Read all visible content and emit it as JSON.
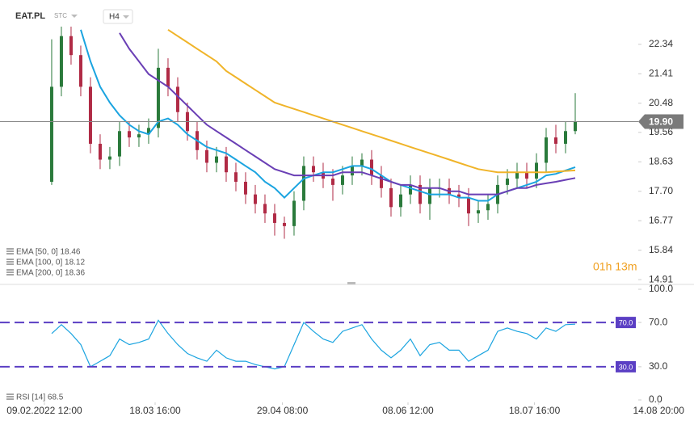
{
  "chart_data": [
    {
      "type": "candlestick",
      "symbol": "EAT.PL",
      "market": "STC",
      "interval": "H4",
      "up_color": "#2a7a3b",
      "down_color": "#b02a45",
      "open": [
        18.0,
        21.0,
        22.6,
        22.0,
        21.0,
        19.2,
        18.7,
        18.8,
        19.6,
        19.4,
        19.5,
        19.7,
        21.6,
        21.0,
        20.2,
        19.6,
        19.0,
        18.6,
        18.8,
        18.3,
        18.0,
        17.6,
        17.3,
        17.0,
        16.7,
        16.6,
        17.4,
        18.5,
        18.3,
        18.1,
        17.9,
        18.2,
        18.5,
        18.7,
        18.2,
        17.8,
        17.2,
        17.6,
        17.9,
        17.3,
        17.8,
        17.8,
        17.6,
        17.5,
        17.0,
        17.1,
        17.3,
        17.9,
        18.1,
        18.3,
        18.1,
        18.6,
        19.4,
        19.2,
        19.6
      ],
      "high": [
        22.5,
        22.9,
        22.9,
        22.3,
        21.3,
        19.5,
        19.1,
        19.9,
        19.9,
        19.8,
        20.0,
        22.2,
        21.9,
        21.3,
        20.5,
        19.9,
        19.3,
        19.1,
        19.1,
        18.6,
        18.3,
        17.9,
        17.6,
        17.3,
        16.9,
        17.7,
        18.8,
        18.8,
        18.6,
        18.4,
        18.5,
        18.8,
        18.9,
        19.0,
        18.5,
        18.1,
        17.9,
        18.2,
        18.2,
        18.1,
        18.1,
        18.1,
        17.9,
        17.8,
        17.4,
        17.6,
        18.2,
        18.4,
        18.6,
        18.6,
        18.9,
        19.7,
        19.8,
        19.9,
        20.8
      ],
      "low": [
        17.9,
        20.7,
        21.7,
        20.7,
        18.9,
        18.4,
        18.4,
        18.5,
        19.1,
        19.1,
        19.2,
        19.4,
        20.7,
        19.9,
        19.3,
        18.7,
        18.3,
        18.3,
        18.0,
        17.7,
        17.3,
        17.0,
        16.7,
        16.3,
        16.2,
        16.3,
        17.1,
        18.0,
        17.8,
        17.4,
        17.6,
        17.9,
        18.2,
        17.9,
        17.5,
        16.9,
        16.9,
        17.3,
        17.0,
        16.8,
        17.5,
        17.3,
        17.2,
        16.6,
        16.7,
        16.8,
        17.0,
        17.6,
        17.8,
        17.8,
        17.8,
        18.3,
        18.9,
        18.9,
        19.5
      ],
      "close": [
        21.0,
        22.6,
        22.0,
        21.0,
        19.2,
        18.7,
        18.8,
        19.6,
        19.4,
        19.5,
        19.7,
        21.6,
        21.0,
        20.2,
        19.6,
        19.0,
        18.6,
        18.8,
        18.3,
        18.0,
        17.6,
        17.3,
        17.0,
        16.7,
        16.6,
        17.4,
        18.5,
        18.3,
        18.1,
        17.9,
        18.2,
        18.5,
        18.7,
        18.2,
        17.8,
        17.2,
        17.6,
        17.9,
        17.3,
        17.8,
        17.8,
        17.6,
        17.5,
        17.0,
        17.1,
        17.3,
        17.9,
        18.1,
        18.3,
        18.1,
        18.6,
        19.4,
        19.2,
        19.6,
        19.9
      ],
      "series": [
        {
          "name": "EMA [50, 0] 18.46",
          "color": "#1ba4e0",
          "values": [
            null,
            null,
            null,
            22.8,
            21.8,
            21.0,
            20.5,
            20.1,
            19.8,
            19.6,
            19.5,
            19.9,
            20.0,
            19.8,
            19.5,
            19.3,
            19.1,
            19.0,
            18.9,
            18.7,
            18.5,
            18.3,
            18.0,
            17.8,
            17.5,
            17.8,
            18.1,
            18.2,
            18.3,
            18.3,
            18.4,
            18.5,
            18.5,
            18.4,
            18.2,
            18.0,
            17.9,
            17.8,
            17.7,
            17.6,
            17.6,
            17.6,
            17.5,
            17.5,
            17.4,
            17.4,
            17.6,
            17.7,
            17.8,
            17.9,
            18.0,
            18.2,
            18.25,
            18.36,
            18.46
          ]
        },
        {
          "name": "EMA [100, 0] 18.12",
          "color": "#6a3fb5",
          "values": [
            null,
            null,
            null,
            null,
            null,
            null,
            null,
            22.7,
            22.2,
            21.8,
            21.4,
            21.2,
            21.0,
            20.7,
            20.4,
            20.1,
            19.8,
            19.6,
            19.4,
            19.2,
            19.0,
            18.8,
            18.6,
            18.4,
            18.3,
            18.2,
            18.2,
            18.2,
            18.2,
            18.2,
            18.3,
            18.3,
            18.3,
            18.2,
            18.1,
            18.0,
            17.9,
            17.9,
            17.8,
            17.8,
            17.8,
            17.7,
            17.7,
            17.6,
            17.6,
            17.6,
            17.6,
            17.7,
            17.8,
            17.8,
            17.9,
            17.95,
            18.0,
            18.06,
            18.12
          ]
        },
        {
          "name": "EMA [200, 0] 18.36",
          "color": "#f0b429",
          "values": [
            null,
            null,
            null,
            null,
            null,
            null,
            null,
            null,
            null,
            null,
            null,
            null,
            22.8,
            22.6,
            22.4,
            22.2,
            22.0,
            21.8,
            21.5,
            21.3,
            21.1,
            20.9,
            20.7,
            20.5,
            20.4,
            20.3,
            20.2,
            20.1,
            20.0,
            19.9,
            19.8,
            19.7,
            19.6,
            19.5,
            19.4,
            19.3,
            19.2,
            19.1,
            19.0,
            18.9,
            18.8,
            18.7,
            18.6,
            18.5,
            18.4,
            18.35,
            18.3,
            18.3,
            18.3,
            18.3,
            18.3,
            18.3,
            18.32,
            18.34,
            18.36
          ]
        }
      ],
      "last_price": {
        "value": 19.9,
        "label": "19.90"
      },
      "countdown": "01h 13m",
      "xlim": [
        -5.33,
        60.5
      ],
      "xticks": [
        {
          "value": -0.75,
          "label": "09.02.2022 12:00"
        },
        {
          "value": 10.67,
          "label": "18.03 16:00"
        },
        {
          "value": 23.8,
          "label": "29.04 08:00"
        },
        {
          "value": 36.75,
          "label": "08.06 12:00"
        },
        {
          "value": 49.8,
          "label": "18.07 16:00"
        },
        {
          "value": 62.6,
          "label": "14.08 20:00"
        }
      ],
      "ylim": [
        14.81,
        23.74
      ],
      "yticks": [
        22.34,
        21.41,
        20.48,
        19.56,
        18.63,
        {
          "value": 17.7,
          "label": "17.70"
        },
        16.77,
        15.84,
        14.91
      ]
    },
    {
      "type": "line",
      "series": [
        {
          "name": "RSI [14] 68.5",
          "color": "#1ba4e0",
          "values": [
            60,
            68,
            60,
            50,
            30,
            35,
            40,
            55,
            50,
            52,
            55,
            72,
            60,
            50,
            42,
            38,
            35,
            45,
            38,
            35,
            35,
            32,
            30,
            28,
            30,
            50,
            70,
            62,
            55,
            52,
            62,
            65,
            68,
            55,
            45,
            38,
            45,
            55,
            40,
            50,
            52,
            45,
            45,
            35,
            40,
            45,
            62,
            65,
            62,
            60,
            55,
            65,
            62,
            68,
            68.5
          ]
        }
      ],
      "levels": [
        {
          "value": 70,
          "label": "70.0"
        },
        {
          "value": 30,
          "label": "30.0"
        }
      ],
      "level_color": "#5b3fc4",
      "ylim": [
        0,
        100
      ],
      "yticks": [
        {
          "value": 100,
          "label": "100.0"
        },
        {
          "value": 70,
          "label": "70.0"
        },
        {
          "value": 30,
          "label": "30.0"
        },
        {
          "value": 0,
          "label": "0.0"
        }
      ]
    }
  ]
}
